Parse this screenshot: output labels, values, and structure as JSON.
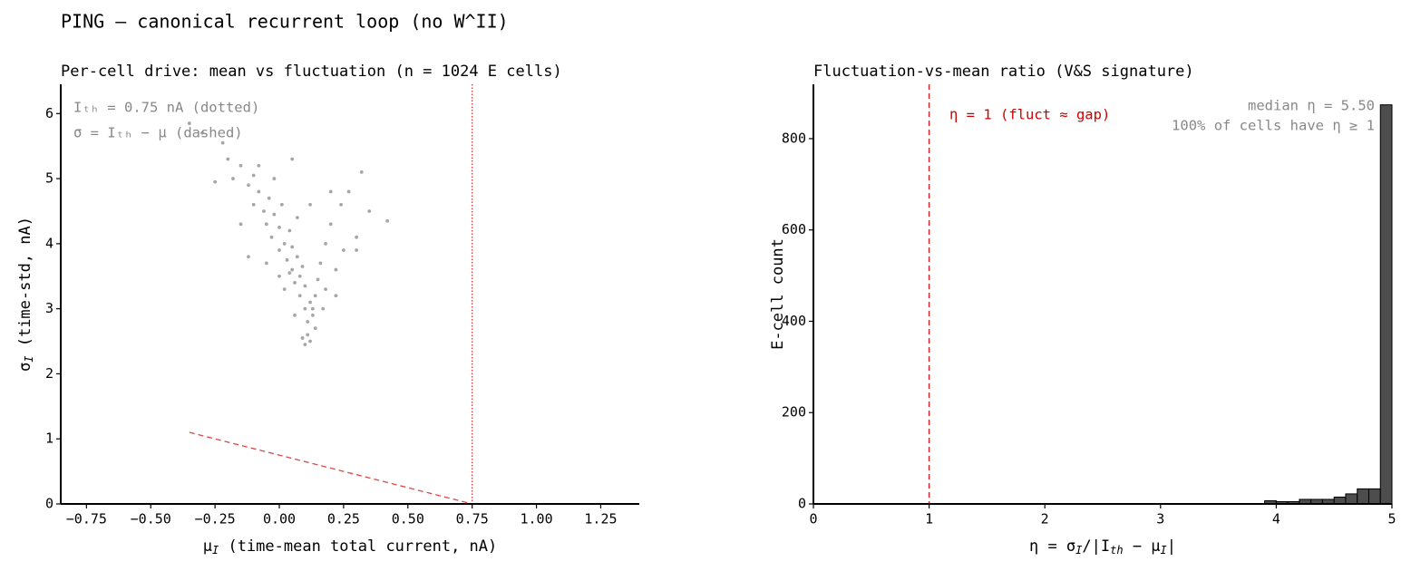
{
  "title": "PING — canonical recurrent loop (no W^II)",
  "chart_data": [
    {
      "type": "scatter",
      "title": "Per-cell drive: mean vs fluctuation (n = 1024 E cells)",
      "xlabel": [
        "μ",
        "I",
        "  (time-mean total current, nA)"
      ],
      "ylabel": [
        "σ",
        "I",
        "  (time-std, nA)"
      ],
      "x": [
        -0.35,
        -0.3,
        -0.22,
        -0.25,
        -0.2,
        -0.18,
        -0.15,
        -0.12,
        -0.1,
        -0.1,
        -0.08,
        -0.06,
        -0.05,
        -0.04,
        -0.03,
        -0.02,
        0.0,
        0.0,
        0.01,
        0.02,
        0.03,
        0.04,
        0.05,
        0.05,
        0.06,
        0.07,
        0.08,
        0.08,
        0.09,
        0.1,
        0.1,
        0.11,
        0.11,
        0.12,
        0.12,
        0.13,
        0.14,
        0.15,
        0.16,
        0.18,
        0.2,
        0.22,
        0.25,
        0.3,
        0.32,
        0.35,
        0.42,
        0.27,
        0.2,
        -0.12,
        -0.05,
        0.0,
        0.02,
        0.06,
        0.17,
        0.14,
        0.22,
        -0.15,
        0.12,
        0.05,
        -0.08,
        0.1,
        0.09,
        0.13,
        0.04,
        0.07,
        0.3,
        0.18,
        0.24,
        -0.02
      ],
      "values": [
        5.85,
        5.7,
        5.55,
        4.95,
        5.3,
        5.0,
        5.2,
        4.9,
        5.05,
        4.6,
        4.8,
        4.5,
        4.3,
        4.7,
        4.1,
        4.45,
        4.25,
        3.9,
        4.6,
        4.0,
        3.75,
        4.2,
        3.6,
        3.95,
        3.4,
        3.8,
        3.5,
        3.2,
        3.65,
        3.0,
        3.35,
        2.8,
        2.6,
        2.5,
        3.1,
        2.9,
        3.2,
        3.45,
        3.7,
        4.0,
        4.3,
        3.2,
        3.9,
        4.1,
        5.1,
        4.5,
        4.35,
        4.8,
        4.8,
        3.8,
        3.7,
        3.5,
        3.3,
        2.9,
        3.0,
        2.7,
        3.6,
        4.3,
        4.6,
        5.3,
        5.2,
        2.45,
        2.55,
        3.0,
        3.55,
        4.4,
        3.9,
        3.3,
        4.6,
        5.0
      ],
      "color": "#000000",
      "xlim": [
        -0.85,
        1.4
      ],
      "ylim": [
        0,
        6.45
      ],
      "xticks": [
        {
          "value": -0.75,
          "label": "−0.75"
        },
        {
          "value": -0.5,
          "label": "−0.50"
        },
        {
          "value": -0.25,
          "label": "−0.25"
        },
        {
          "value": 0,
          "label": "0.00"
        },
        {
          "value": 0.25,
          "label": "0.25"
        },
        {
          "value": 0.5,
          "label": "0.50"
        },
        {
          "value": 0.75,
          "label": "0.75"
        },
        {
          "value": 1,
          "label": "1.00"
        },
        {
          "value": 1.25,
          "label": "1.25"
        }
      ],
      "yticks": [
        0,
        1,
        2,
        3,
        4,
        5,
        6
      ],
      "threshold": 0.75,
      "threshold_color": "#d62728",
      "guide_x": [
        -0.35,
        0.75
      ],
      "annotations": [
        {
          "text": "Iₜₕ = 0.75 nA (dotted)",
          "color": "#888888"
        },
        {
          "text": "σ = Iₜₕ − μ (dashed)",
          "color": "#888888"
        }
      ]
    },
    {
      "type": "histogram",
      "title": "Fluctuation-vs-mean ratio (V&S signature)",
      "xlabel": [
        "η = σ",
        "I",
        "/|I",
        "th",
        " − μ",
        "I",
        "|"
      ],
      "ylabel": [
        "E-cell count"
      ],
      "bins": [
        3.9,
        4.0,
        4.1,
        4.2,
        4.3,
        4.4,
        4.5,
        4.6,
        4.7,
        4.8,
        4.9,
        5.0
      ],
      "values": [
        7,
        5,
        5,
        10,
        10,
        10,
        15,
        22,
        33,
        33,
        874
      ],
      "color": "#4d4d4d",
      "xlim": [
        0,
        5
      ],
      "ylim": [
        0,
        919
      ],
      "xticks": [
        0,
        1,
        2,
        3,
        4,
        5
      ],
      "yticks": [
        0,
        200,
        400,
        600,
        800
      ],
      "reference": 1,
      "reference_color": "#d62728",
      "annotations": [
        {
          "text": "η = 1  (fluct ≈ gap)",
          "color": "#cc0000"
        },
        {
          "text": "median η = 5.50",
          "color": "#888888"
        },
        {
          "text": "100% of cells have η ≥ 1",
          "color": "#888888"
        }
      ]
    }
  ]
}
